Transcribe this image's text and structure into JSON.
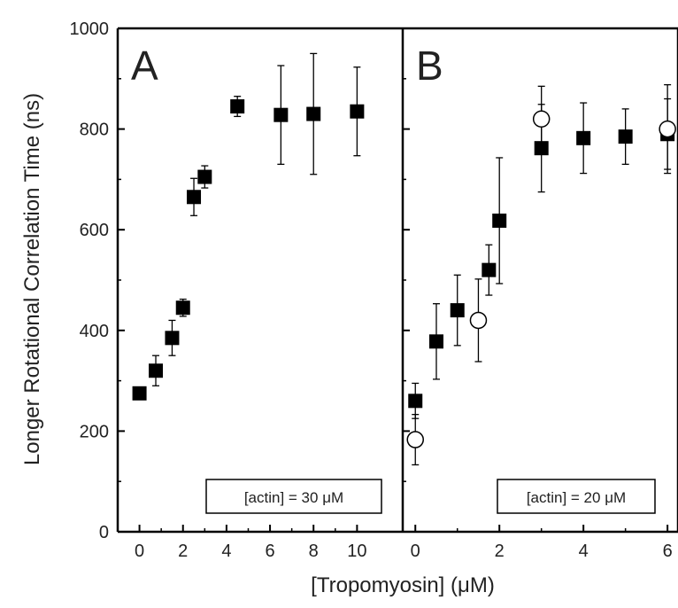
{
  "chart_data": [
    {
      "type": "scatter",
      "panel_label": "A",
      "annotation": "[actin] = 30 μM",
      "ylabel": "Longer Rotational Correlation Time (ns)",
      "xlim": [
        -1,
        12.1
      ],
      "ylim": [
        0,
        1000
      ],
      "xticks": [
        0,
        2,
        4,
        6,
        8,
        10
      ],
      "yticks": [
        0,
        200,
        400,
        600,
        800,
        1000
      ],
      "series": [
        {
          "marker": "filled-square",
          "points": [
            {
              "x": 0,
              "y": 275,
              "err": 0
            },
            {
              "x": 0.75,
              "y": 320,
              "err": 30
            },
            {
              "x": 1.5,
              "y": 385,
              "err": 35
            },
            {
              "x": 2.0,
              "y": 445,
              "err": 17
            },
            {
              "x": 2.5,
              "y": 665,
              "err": 37
            },
            {
              "x": 3.0,
              "y": 705,
              "err": 22
            },
            {
              "x": 4.5,
              "y": 845,
              "err": 20
            },
            {
              "x": 6.5,
              "y": 828,
              "err": 98
            },
            {
              "x": 8.0,
              "y": 830,
              "err": 120
            },
            {
              "x": 10.0,
              "y": 835,
              "err": 88
            }
          ]
        }
      ]
    },
    {
      "type": "scatter",
      "panel_label": "B",
      "annotation": "[actin] = 20 μM",
      "xlim": [
        -0.3,
        6.25
      ],
      "ylim": [
        0,
        1000
      ],
      "xticks": [
        0,
        2,
        4,
        6
      ],
      "yticks": [
        0,
        200,
        400,
        600,
        800,
        1000
      ],
      "series": [
        {
          "marker": "filled-square",
          "points": [
            {
              "x": 0,
              "y": 260,
              "err": 35
            },
            {
              "x": 0.5,
              "y": 378,
              "err": 75
            },
            {
              "x": 1.0,
              "y": 440,
              "err": 70
            },
            {
              "x": 1.75,
              "y": 520,
              "err": 50
            },
            {
              "x": 2.0,
              "y": 618,
              "err": 125
            },
            {
              "x": 3.0,
              "y": 762,
              "err": 87
            },
            {
              "x": 4.0,
              "y": 782,
              "err": 70
            },
            {
              "x": 5.0,
              "y": 785,
              "err": 55
            },
            {
              "x": 6.0,
              "y": 790,
              "err": 70
            }
          ]
        },
        {
          "marker": "open-circle",
          "points": [
            {
              "x": 0,
              "y": 183,
              "err": 50
            },
            {
              "x": 1.5,
              "y": 420,
              "err": 82
            },
            {
              "x": 3.0,
              "y": 820,
              "err": 65
            },
            {
              "x": 6.0,
              "y": 800,
              "err": 88
            }
          ]
        }
      ]
    }
  ],
  "shared_xlabel": "[Tropomyosin] (μM)"
}
